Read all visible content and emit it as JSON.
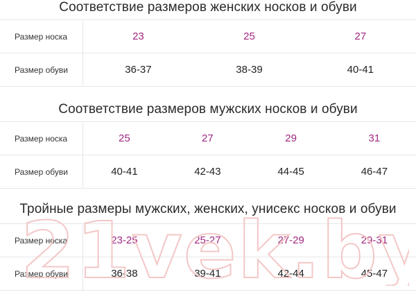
{
  "tables": [
    {
      "title": "Соответствие размеров женских носков и обуви",
      "rows": [
        {
          "label": "Размер носка",
          "values": [
            "23",
            "25",
            "27"
          ]
        },
        {
          "label": "Размер обуви",
          "values": [
            "36-37",
            "38-39",
            "40-41"
          ]
        }
      ]
    },
    {
      "title": "Соответствие размеров мужских носков и обуви",
      "rows": [
        {
          "label": "Размер носка",
          "values": [
            "25",
            "27",
            "29",
            "31"
          ]
        },
        {
          "label": "Размер обуви",
          "values": [
            "40-41",
            "42-43",
            "44-45",
            "46-47"
          ]
        }
      ]
    },
    {
      "title": "Тройные размеры мужских, женских, унисекс носков и обуви",
      "rows": [
        {
          "label": "Размер носка",
          "values": [
            "23-25",
            "25-27",
            "27-29",
            "29-31"
          ]
        },
        {
          "label": "Размер обуви",
          "values": [
            "36-38",
            "39-41",
            "42-44",
            "45-47"
          ]
        }
      ]
    }
  ],
  "watermark": "21vek.by",
  "colors": {
    "sock_size": "#a0287f",
    "shoe_size": "#222222",
    "border": "#e6e6e6",
    "watermark": "#f3c7c7"
  }
}
